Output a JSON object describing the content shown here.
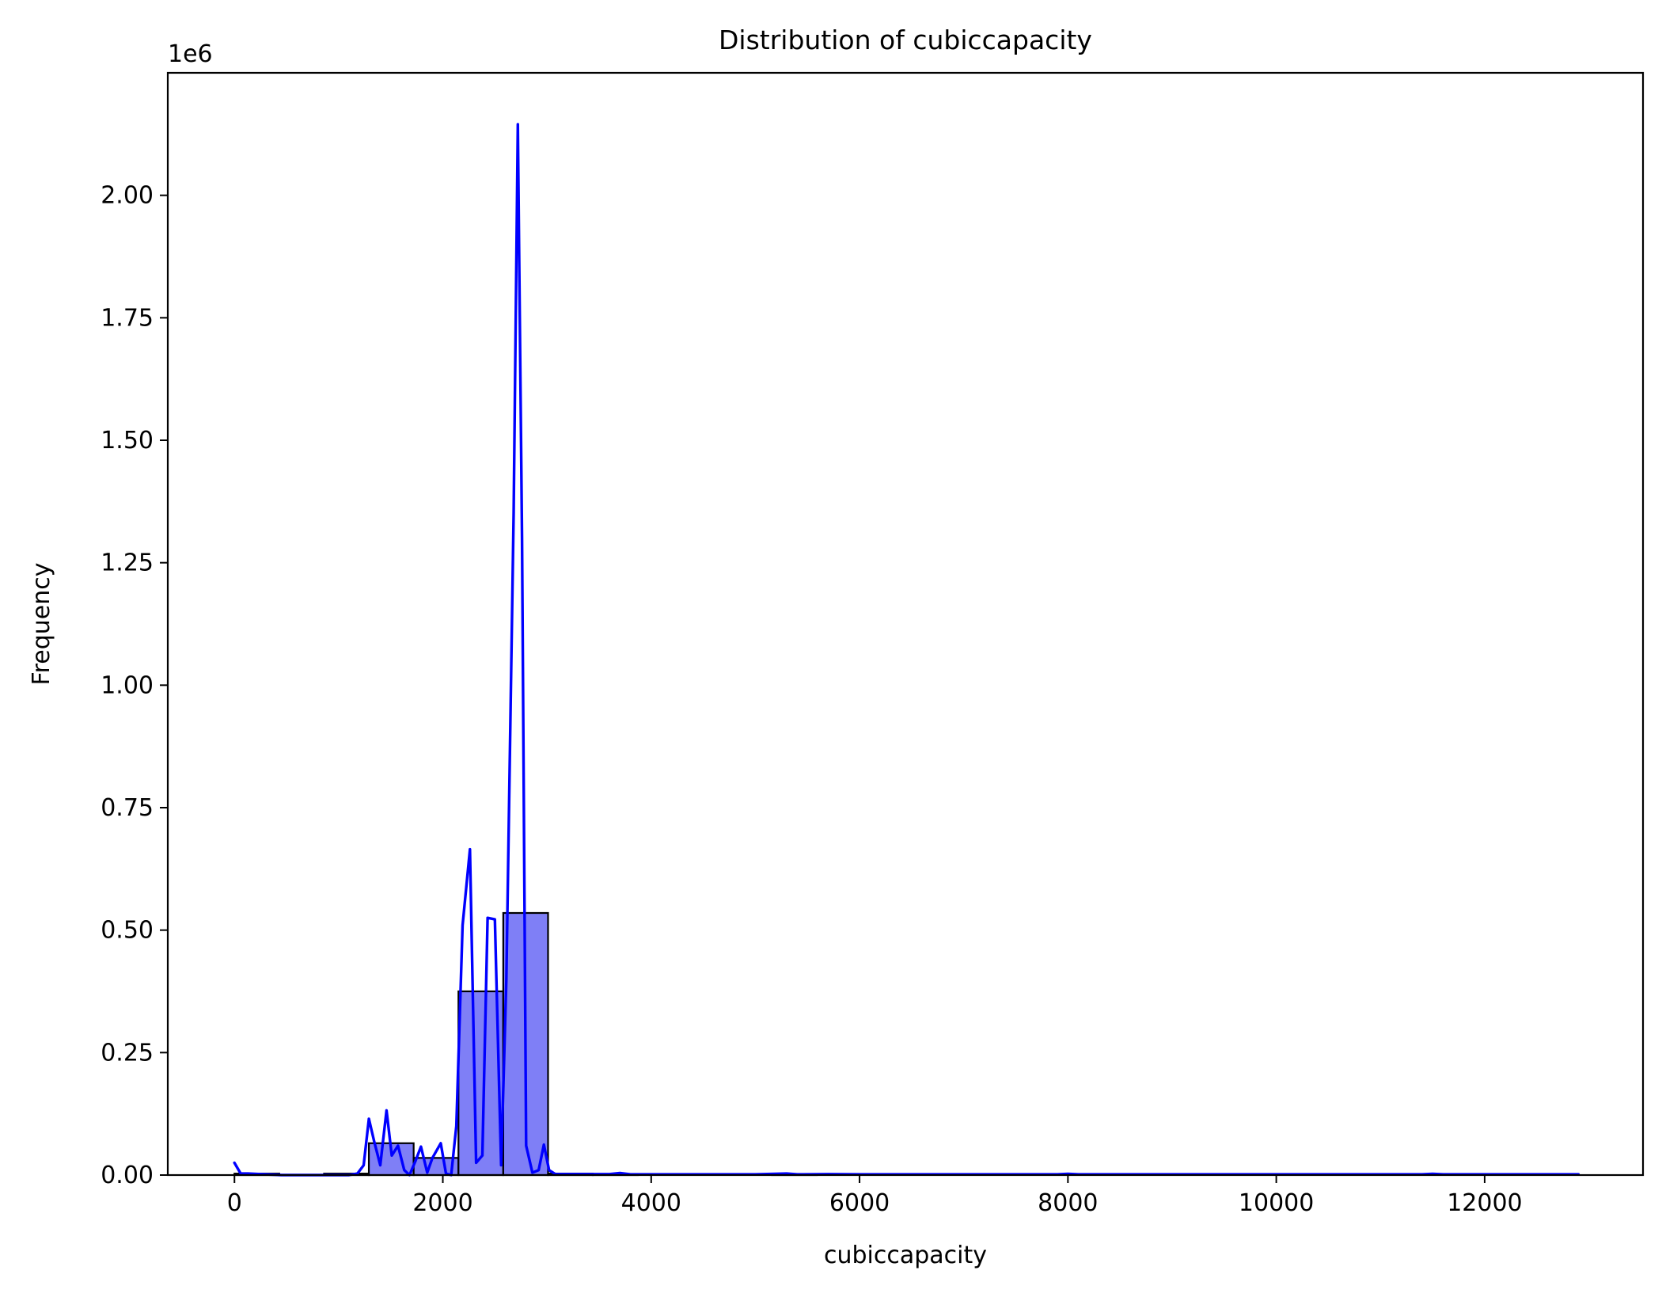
{
  "chart_data": {
    "type": "bar",
    "title": "Distribution of cubiccapacity",
    "xlabel": "cubiccapacity",
    "ylabel": "Frequency",
    "y_offset_label": "1e6",
    "y_scale": 1000000,
    "xlim": [
      -640,
      13520
    ],
    "ylim": [
      0,
      2250000
    ],
    "grid": false,
    "legend": "none",
    "x_ticks": [
      0,
      2000,
      4000,
      6000,
      8000,
      10000,
      12000
    ],
    "x_tick_labels": [
      "0",
      "2000",
      "4000",
      "6000",
      "8000",
      "10000",
      "12000"
    ],
    "y_ticks": [
      0,
      250000,
      500000,
      750000,
      1000000,
      1250000,
      1500000,
      1750000,
      2000000
    ],
    "y_tick_labels": [
      "0.00",
      "0.25",
      "0.50",
      "0.75",
      "1.00",
      "1.25",
      "1.50",
      "1.75",
      "2.00"
    ],
    "bins": [
      {
        "x0": 0,
        "x1": 430,
        "value": 3000
      },
      {
        "x0": 430,
        "x1": 860,
        "value": 0
      },
      {
        "x0": 860,
        "x1": 1290,
        "value": 3000
      },
      {
        "x0": 1290,
        "x1": 1720,
        "value": 65000
      },
      {
        "x0": 1720,
        "x1": 2150,
        "value": 35000
      },
      {
        "x0": 2150,
        "x1": 2580,
        "value": 375000
      },
      {
        "x0": 2580,
        "x1": 3010,
        "value": 535000
      },
      {
        "x0": 3010,
        "x1": 3440,
        "value": 3000
      },
      {
        "x0": 3440,
        "x1": 3870,
        "value": 1000
      },
      {
        "x0": 3870,
        "x1": 4300,
        "value": 500
      },
      {
        "x0": 4300,
        "x1": 4730,
        "value": 500
      },
      {
        "x0": 4730,
        "x1": 5160,
        "value": 500
      },
      {
        "x0": 5160,
        "x1": 5590,
        "value": 1000
      },
      {
        "x0": 5590,
        "x1": 6020,
        "value": 500
      },
      {
        "x0": 6020,
        "x1": 6450,
        "value": 0
      },
      {
        "x0": 6450,
        "x1": 6880,
        "value": 0
      },
      {
        "x0": 6880,
        "x1": 7310,
        "value": 0
      },
      {
        "x0": 7310,
        "x1": 7740,
        "value": 0
      },
      {
        "x0": 7740,
        "x1": 8170,
        "value": 500
      },
      {
        "x0": 8170,
        "x1": 8600,
        "value": 0
      },
      {
        "x0": 8600,
        "x1": 9030,
        "value": 0
      },
      {
        "x0": 9030,
        "x1": 9460,
        "value": 0
      },
      {
        "x0": 9460,
        "x1": 9890,
        "value": 0
      },
      {
        "x0": 9890,
        "x1": 10320,
        "value": 0
      },
      {
        "x0": 10320,
        "x1": 10750,
        "value": 0
      },
      {
        "x0": 10750,
        "x1": 11180,
        "value": 0
      },
      {
        "x0": 11180,
        "x1": 11610,
        "value": 500
      },
      {
        "x0": 11610,
        "x1": 12040,
        "value": 0
      },
      {
        "x0": 12040,
        "x1": 12470,
        "value": 0
      },
      {
        "x0": 12470,
        "x1": 12900,
        "value": 0
      }
    ],
    "kde_series": {
      "name": "",
      "points": [
        [
          0,
          25000
        ],
        [
          60,
          3000
        ],
        [
          130,
          3000
        ],
        [
          250,
          2000
        ],
        [
          450,
          0
        ],
        [
          900,
          0
        ],
        [
          1100,
          0
        ],
        [
          1180,
          3000
        ],
        [
          1240,
          20000
        ],
        [
          1290,
          115000
        ],
        [
          1340,
          70000
        ],
        [
          1400,
          20000
        ],
        [
          1460,
          132000
        ],
        [
          1510,
          40000
        ],
        [
          1570,
          60000
        ],
        [
          1630,
          10000
        ],
        [
          1680,
          0
        ],
        [
          1740,
          30000
        ],
        [
          1790,
          58000
        ],
        [
          1850,
          5000
        ],
        [
          1900,
          35000
        ],
        [
          1980,
          65000
        ],
        [
          2030,
          3000
        ],
        [
          2080,
          0
        ],
        [
          2130,
          100000
        ],
        [
          2190,
          510000
        ],
        [
          2260,
          665000
        ],
        [
          2320,
          25000
        ],
        [
          2380,
          40000
        ],
        [
          2430,
          525000
        ],
        [
          2500,
          522000
        ],
        [
          2560,
          20000
        ],
        [
          2610,
          400000
        ],
        [
          2680,
          1350000
        ],
        [
          2720,
          2145000
        ],
        [
          2760,
          1300000
        ],
        [
          2800,
          60000
        ],
        [
          2860,
          5000
        ],
        [
          2920,
          10000
        ],
        [
          2970,
          62000
        ],
        [
          3020,
          10000
        ],
        [
          3080,
          2000
        ],
        [
          3200,
          2000
        ],
        [
          3600,
          2000
        ],
        [
          3700,
          4000
        ],
        [
          3800,
          1500
        ],
        [
          5000,
          1500
        ],
        [
          5300,
          3000
        ],
        [
          5400,
          1500
        ],
        [
          5700,
          2000
        ],
        [
          6000,
          1500
        ],
        [
          7900,
          1500
        ],
        [
          8000,
          2500
        ],
        [
          8100,
          1500
        ],
        [
          11400,
          1500
        ],
        [
          11500,
          2500
        ],
        [
          11600,
          1500
        ],
        [
          12900,
          1500
        ]
      ]
    },
    "colors": {
      "bar_fill": "#7f7ff6",
      "bar_edge": "#000000",
      "kde_line": "#0000ff",
      "axes": "#000000"
    }
  }
}
